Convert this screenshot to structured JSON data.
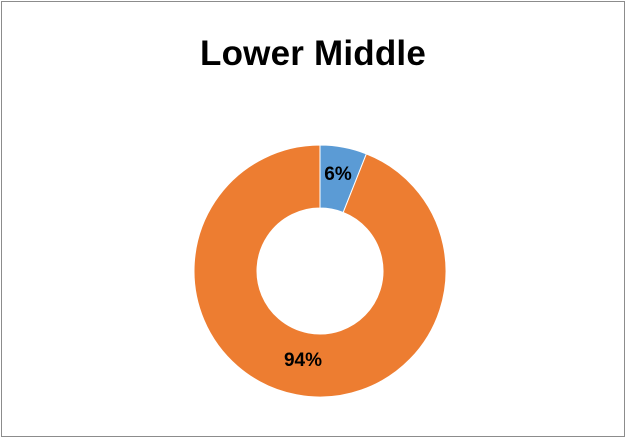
{
  "chart_data": {
    "type": "pie",
    "subtype": "donut",
    "title": "Lower Middle",
    "categories": [
      "",
      ""
    ],
    "values": [
      6,
      94
    ],
    "data_labels": [
      "6%",
      "94%"
    ],
    "colors": [
      "#5b9bd5",
      "#ed7d31"
    ],
    "legend": "none"
  }
}
